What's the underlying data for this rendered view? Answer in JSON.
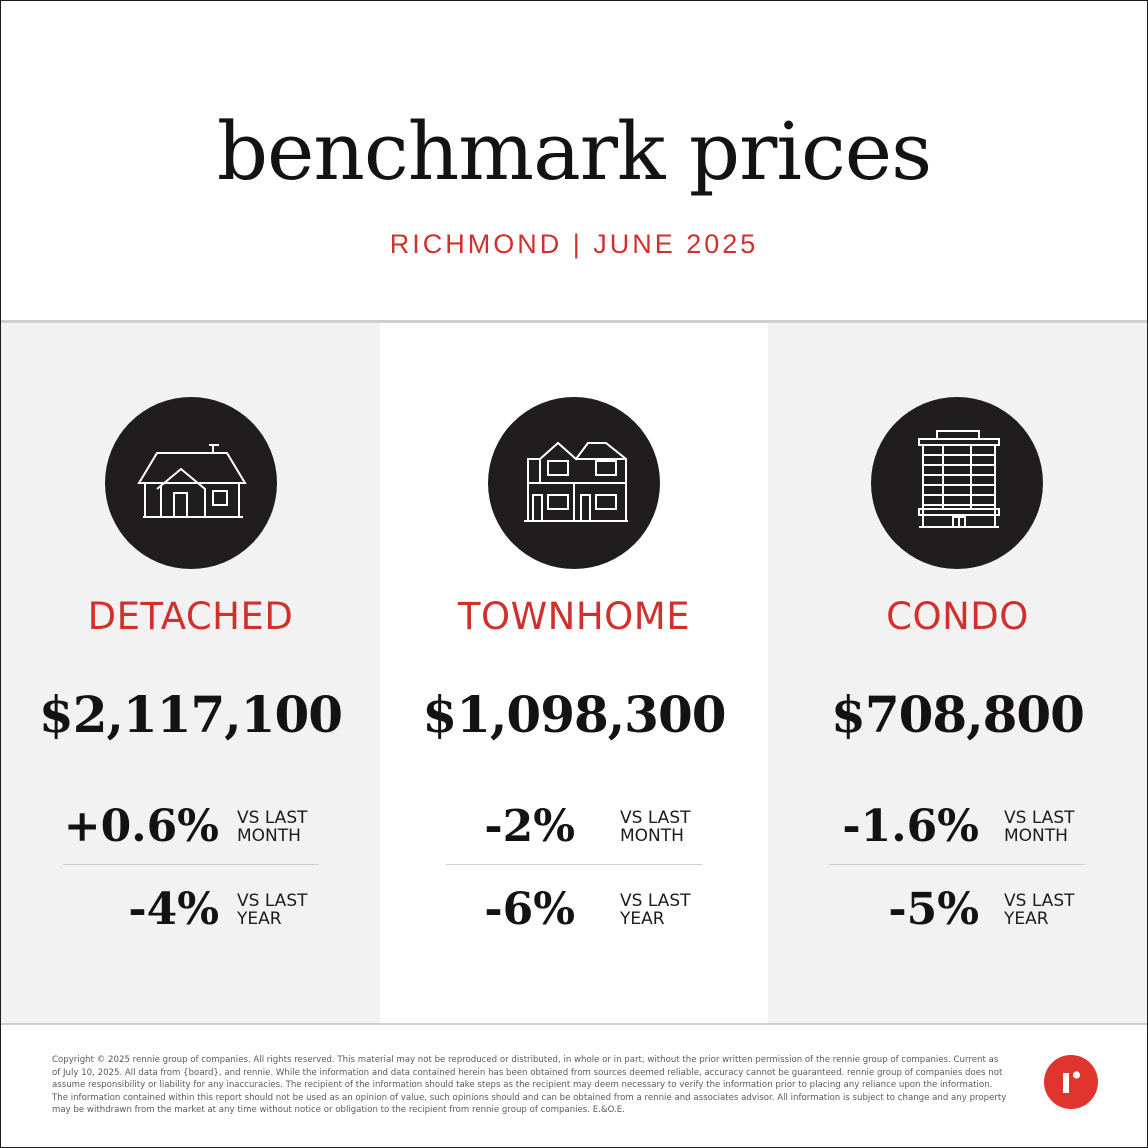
{
  "header": {
    "title": "benchmark prices",
    "subtitle": "RICHMOND | JUNE 2025"
  },
  "colors": {
    "accent": "#d0312d",
    "icon_bg": "#1f1d1e",
    "panel_gray": "#f2f2f2"
  },
  "panels": [
    {
      "type": "DETACHED",
      "icon": "house-icon",
      "price": "$2,117,100",
      "month_change": "+0.6%",
      "month_label": "VS LAST\nMONTH",
      "year_change": "-4%",
      "year_label": "VS LAST\nYEAR"
    },
    {
      "type": "TOWNHOME",
      "icon": "townhome-icon",
      "price": "$1,098,300",
      "month_change": "-2%",
      "month_label": "VS LAST\nMONTH",
      "year_change": "-6%",
      "year_label": "VS LAST\nYEAR"
    },
    {
      "type": "CONDO",
      "icon": "condo-tower-icon",
      "price": "$708,800",
      "month_change": "-1.6%",
      "month_label": "VS LAST\nMONTH",
      "year_change": "-5%",
      "year_label": "VS LAST\nYEAR"
    }
  ],
  "footer": {
    "legal": "Copyright © 2025 rennie group of companies. All rights reserved. This material may not be reproduced or distributed, in whole or in part, without the prior written permission of the rennie group of companies. Current as of July 10, 2025. All data from {board}, and rennie. While the information and data contained herein has been obtained from sources deemed reliable, accuracy cannot be guaranteed. rennie group of companies does not assume responsibility or liability for any inaccuracies. The recipient of the information should take steps as the recipient may deem necessary to verify the information prior to placing any reliance upon the information. The information contained within this report should not be used as an opinion of value, such opinions should and can be obtained from a rennie and associates advisor. All information is subject to change and any property may be withdrawn from the market at any time without notice or obligation to the recipient from rennie group of companies. E.&O.E.",
    "logo": "rennie-logo-icon"
  }
}
